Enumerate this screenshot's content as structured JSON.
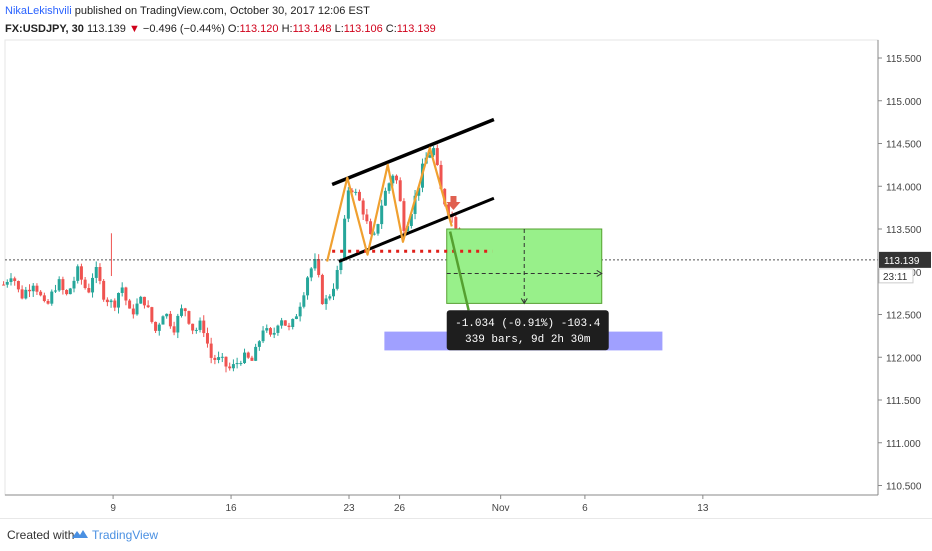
{
  "header": {
    "author": "NikaLekishvili",
    "published_text": "published on TradingView.com, October 30, 2017 12:06 EST",
    "symbol": "FX:USDJPY, 30",
    "last": "113.139",
    "change_arrow": "▼",
    "change": "−0.496 (−0.44%)",
    "o_label": "O:",
    "o_value": "113.120",
    "h_label": "H:",
    "h_value": "113.148",
    "l_label": "L:",
    "l_value": "113.106",
    "c_label": "C:",
    "c_value": "113.139"
  },
  "footer": {
    "created_with": "Created with",
    "brand": "TradingView",
    "logo_icon": "tradingview-logo-icon"
  },
  "colors": {
    "up": "#26a69a",
    "down": "#ef5350",
    "channel": "#000000",
    "pattern": "#f0a030",
    "support": "#e0201a",
    "target_zone": "#8080ff",
    "projection_fill": "#98f08a",
    "projection_line": "#55a030",
    "price_badge": "#333333"
  },
  "chart_data": {
    "type": "candlestick",
    "symbol": "FX:USDJPY",
    "interval": "30",
    "y_ticks": [
      "110.500",
      "111.000",
      "111.500",
      "112.000",
      "112.500",
      "113.000",
      "113.500",
      "114.000",
      "114.500",
      "115.000",
      "115.500"
    ],
    "ylim": [
      110.4,
      115.7
    ],
    "x_ticks": [
      {
        "label": "9",
        "day": 9
      },
      {
        "label": "16",
        "day": 16
      },
      {
        "label": "23",
        "day": 23
      },
      {
        "label": "26",
        "day": 26
      },
      {
        "label": "Nov",
        "day": 32
      },
      {
        "label": "6",
        "day": 37
      },
      {
        "label": "13",
        "day": 44
      }
    ],
    "current_price": "113.139",
    "countdown": "23:11",
    "price_path": [
      [
        2.5,
        112.85
      ],
      [
        3,
        113.0
      ],
      [
        3.5,
        112.7
      ],
      [
        4.3,
        112.9
      ],
      [
        5,
        112.55
      ],
      [
        5.7,
        112.9
      ],
      [
        6.2,
        112.7
      ],
      [
        6.9,
        113.0
      ],
      [
        7.5,
        112.75
      ],
      [
        7.9,
        113.05
      ],
      [
        8.4,
        112.75
      ],
      [
        9,
        112.6
      ],
      [
        9.5,
        112.85
      ],
      [
        10,
        112.5
      ],
      [
        10.8,
        112.7
      ],
      [
        11.5,
        112.3
      ],
      [
        12,
        112.55
      ],
      [
        12.6,
        112.35
      ],
      [
        13.2,
        112.6
      ],
      [
        13.8,
        112.3
      ],
      [
        14.3,
        112.4
      ],
      [
        14.8,
        112.0
      ],
      [
        15.4,
        111.95
      ],
      [
        16,
        111.85
      ],
      [
        16.6,
        112.0
      ],
      [
        17.3,
        111.95
      ],
      [
        17.9,
        112.35
      ],
      [
        18.4,
        112.2
      ],
      [
        18.9,
        112.5
      ],
      [
        19.5,
        112.3
      ],
      [
        20.2,
        112.7
      ],
      [
        20.6,
        113.0
      ],
      [
        21,
        113.1
      ],
      [
        21.5,
        112.6
      ],
      [
        22,
        112.8
      ],
      [
        22.5,
        113.1
      ],
      [
        23.0,
        114.05
      ],
      [
        23.8,
        113.75
      ],
      [
        24.4,
        113.3
      ],
      [
        25,
        113.85
      ],
      [
        25.7,
        114.2
      ],
      [
        26.3,
        113.5
      ],
      [
        26.9,
        113.85
      ],
      [
        27.5,
        114.3
      ],
      [
        28,
        114.45
      ],
      [
        28.5,
        113.9
      ],
      [
        29.2,
        113.6
      ],
      [
        29.6,
        113.5
      ]
    ],
    "annotations": {
      "channel_upper": {
        "from": [
          22.0,
          114.02
        ],
        "to": [
          31.6,
          114.78
        ]
      },
      "channel_lower": {
        "from": [
          22.4,
          113.12
        ],
        "to": [
          31.6,
          113.86
        ]
      },
      "pattern_zigzag": [
        [
          21.7,
          113.12
        ],
        [
          22.9,
          114.1
        ],
        [
          24.1,
          113.2
        ],
        [
          25.3,
          114.25
        ],
        [
          26.2,
          113.35
        ],
        [
          27.8,
          114.45
        ],
        [
          29.1,
          113.53
        ]
      ],
      "support_level": {
        "from": [
          22.0,
          113.24
        ],
        "to": [
          31.5,
          113.24
        ]
      },
      "target_zone": {
        "x": [
          25.1,
          41.6
        ],
        "y": [
          112.08,
          112.3
        ]
      },
      "projection_box": {
        "x": [
          28.8,
          38.0
        ],
        "y": [
          112.63,
          113.5
        ]
      },
      "projection_arrow": {
        "from": [
          29.0,
          113.47
        ],
        "to": [
          30.1,
          112.55
        ]
      },
      "measure": {
        "line1": "-1.034 (-0.91%) -103.4",
        "line2": "339 bars, 9d 2h 30m"
      }
    }
  }
}
